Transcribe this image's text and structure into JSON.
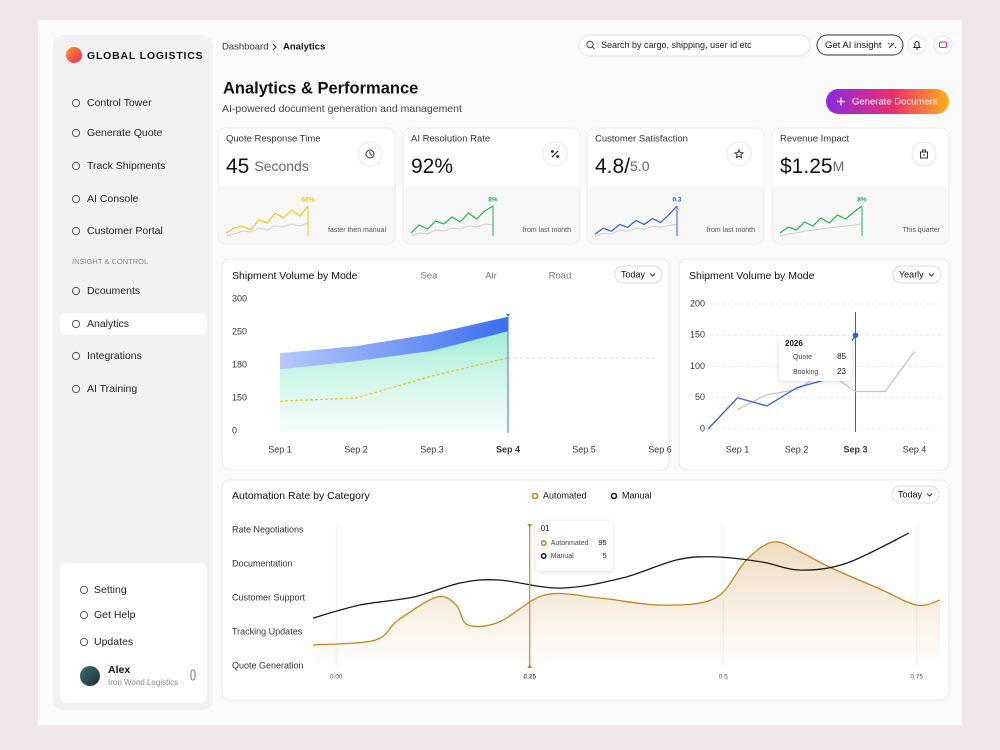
{
  "sidebar": {
    "brand": "GLOBAL LOGISTICS",
    "nav": [
      "Control Tower",
      "Generate Quote",
      "Track Shipments",
      "AI Console",
      "Customer Portal"
    ],
    "section": "INSIGHT & CONTROL",
    "nav2": [
      "Dcouments",
      "Analytics",
      "Integrations",
      "AI Training"
    ],
    "active": 1,
    "footer": [
      "Setting",
      "Get Help",
      "Updates"
    ],
    "user": {
      "name": "Alex",
      "org": "Iron Wood Logistics"
    }
  },
  "header": {
    "breadcrumb": [
      "Dashboard",
      "Analytics"
    ],
    "search": "Search by cargo, shipping, user id etc",
    "ai_button": "Get AI insight"
  },
  "page": {
    "title": "Analytics & Performance",
    "subtitle": "AI-powered document generation and management",
    "action": "Generate Document"
  },
  "kpis": [
    {
      "label": "Quote Response Time",
      "value": "45",
      "unit": "Seconds",
      "badge": "68%",
      "note": "faster then manual",
      "color": "#f5c518",
      "trend": [
        5,
        10,
        12,
        8,
        18,
        15,
        25,
        20,
        28,
        22,
        32
      ],
      "baseline": [
        2,
        4,
        7,
        6,
        10,
        8,
        12,
        11,
        14,
        12,
        15
      ]
    },
    {
      "label": "AI Resolution Rate",
      "value": "92%",
      "badge": "8%",
      "note": "from last month",
      "color": "#22b14c",
      "trend": [
        6,
        14,
        10,
        18,
        15,
        22,
        17,
        26,
        20,
        28,
        33
      ],
      "baseline": [
        3,
        6,
        5,
        9,
        8,
        11,
        10,
        13,
        12,
        15,
        14
      ]
    },
    {
      "label": "Customer Satisfaction",
      "value": "4.8/",
      "unit": "5.0",
      "badge": "0.3",
      "note": "from last month",
      "color": "#2d5be3",
      "trend": [
        4,
        10,
        7,
        14,
        11,
        18,
        14,
        20,
        16,
        24,
        33
      ],
      "baseline": [
        2,
        5,
        4,
        8,
        7,
        10,
        9,
        12,
        11,
        13,
        14
      ]
    },
    {
      "label": "Revenue Impact",
      "value": "$1.25",
      "unit": "M",
      "badge": "8%",
      "note": "This quarter",
      "color": "#22b14c",
      "trend": [
        6,
        12,
        9,
        17,
        13,
        21,
        16,
        24,
        20,
        27,
        33
      ],
      "baseline": [
        3,
        5,
        6,
        8,
        9,
        10,
        11,
        12,
        13,
        14,
        15
      ]
    }
  ],
  "volume_chart": {
    "title": "Shipment Volume by Mode",
    "tabs": [
      "Sea",
      "Air",
      "Road"
    ],
    "filter": "Today",
    "categories": [
      "Sep 1",
      "Sep 2",
      "Sep 3",
      "Sep 4",
      "Sep 5",
      "Sep 6"
    ],
    "yticks": [
      300,
      250,
      180,
      150,
      0
    ],
    "selected_index": 3,
    "series": [
      {
        "color": "#3a6ff0",
        "values": [
          205,
          220,
          246,
          273,
          null,
          null
        ]
      },
      {
        "color": "#8fe8cc",
        "values": [
          176,
          188,
          210,
          251,
          null,
          null
        ]
      },
      {
        "color": "#f2c12e",
        "values": [
          136,
          150,
          170,
          195,
          null,
          null
        ]
      }
    ]
  },
  "trend_chart": {
    "title": "Shipment Volume by Mode",
    "filter": "Yearly",
    "categories": [
      null,
      "Sep 1",
      null,
      "Sep 2",
      null,
      "Sep 3",
      null,
      "Sep 4"
    ],
    "ylim": [
      0,
      200
    ],
    "yticks": [
      0,
      50,
      100,
      150,
      200
    ],
    "selected_index": 5,
    "series": [
      {
        "color": "#2f5fe0",
        "values": [
          0,
          50,
          37,
          66,
          79,
          150,
          null,
          null
        ]
      },
      {
        "color": "#c4c4c4",
        "values": [
          null,
          31,
          55,
          63,
          92,
          60,
          60,
          124
        ]
      }
    ],
    "tooltip": {
      "title": "2026",
      "rows": [
        {
          "label": "Quote",
          "value": 85
        },
        {
          "label": "Booking",
          "value": 23
        }
      ]
    }
  },
  "automation_chart": {
    "title": "Automation Rate by Category",
    "filter": "Today",
    "categories": [
      "Quote Generation",
      "Tracking Updates",
      "Customer Support",
      "Documentation",
      "Rate Negotiations"
    ],
    "xlim": [
      -0.03,
      0.78
    ],
    "xticks": [
      {
        "value": 0,
        "label": "0.00"
      },
      0.25,
      0.5,
      0.75
    ],
    "cursor": 0.25,
    "series": [
      {
        "name": "Automated",
        "color": "#c4841d",
        "x": [
          -0.03,
          0.05,
          0.08,
          0.13,
          0.155,
          0.17,
          0.21,
          0.27,
          0.34,
          0.42,
          0.49,
          0.53,
          0.565,
          0.6,
          0.64,
          0.7,
          0.75,
          0.78
        ],
        "values": [
          0.62,
          0.76,
          1.35,
          2.03,
          1.79,
          1.21,
          1.29,
          2.09,
          2.0,
          1.79,
          2.0,
          3.12,
          3.65,
          3.35,
          2.88,
          2.29,
          1.79,
          1.94
        ]
      },
      {
        "name": "Manual",
        "color": "#1a1a1a",
        "x": [
          -0.03,
          0.03,
          0.1,
          0.16,
          0.21,
          0.29,
          0.37,
          0.44,
          0.49,
          0.55,
          0.6,
          0.66,
          0.74
        ],
        "values": [
          1.41,
          1.79,
          2.03,
          2.44,
          2.53,
          2.29,
          2.59,
          3.12,
          3.21,
          3.06,
          2.82,
          3.03,
          3.91
        ]
      }
    ],
    "tooltip": {
      "title": "01",
      "rows": [
        {
          "label": "Autonmated",
          "value": 95
        },
        {
          "label": "Manual",
          "value": 5
        }
      ]
    }
  }
}
